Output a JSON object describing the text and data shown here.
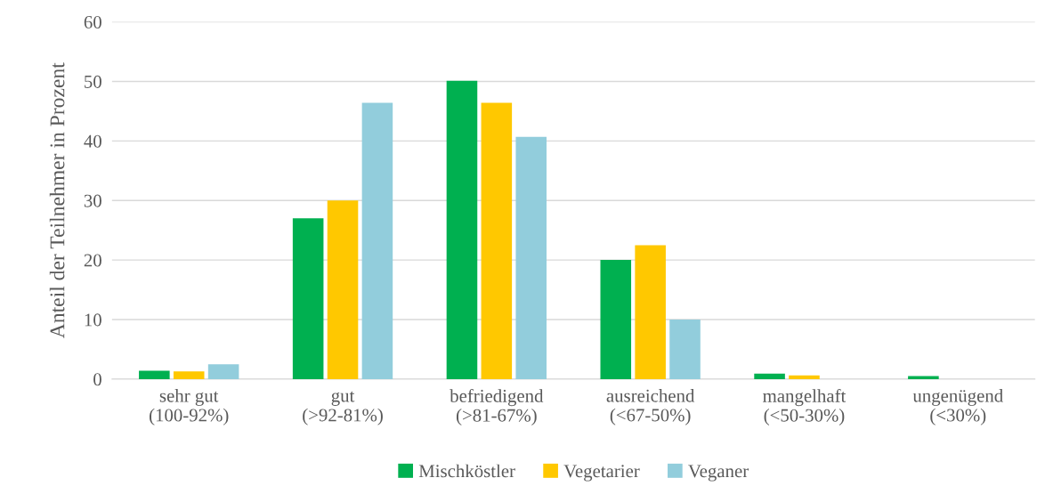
{
  "chart_data": {
    "type": "bar",
    "ylabel": "Anteil der Teilnehmer in Prozent",
    "categories": [
      "sehr gut\n(100-92%)",
      "gut\n(>92-81%)",
      "befriedigend\n(>81-67%)",
      "ausreichend\n(<67-50%)",
      "mangelhaft\n(<50-30%)",
      "ungenügend\n(<30%)"
    ],
    "series": [
      {
        "name": "Mischköstler",
        "color": "#00b050",
        "values": [
          1.4,
          27,
          50.1,
          20,
          0.9,
          0.5
        ]
      },
      {
        "name": "Vegetarier",
        "color": "#ffc800",
        "values": [
          1.3,
          30,
          46.4,
          22.5,
          0.6,
          0
        ]
      },
      {
        "name": "Veganer",
        "color": "#92cddc",
        "values": [
          2.5,
          46.4,
          40.7,
          10,
          0,
          0
        ]
      }
    ],
    "ylim": [
      0,
      60
    ],
    "yticks": [
      0,
      10,
      20,
      30,
      40,
      50,
      60
    ],
    "grid": "y",
    "legend": "bottom"
  }
}
